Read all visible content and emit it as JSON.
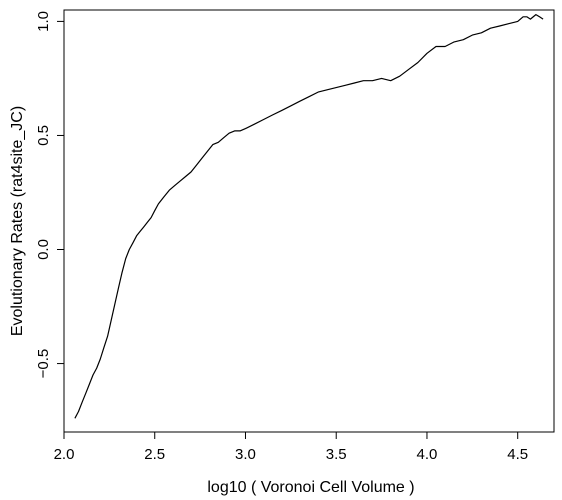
{
  "chart_data": {
    "type": "line",
    "title": "",
    "xlabel": "log10 ( Voronoi Cell Volume )",
    "ylabel": "Evolutionary Rates (rat4site_JC)",
    "xlim": [
      2.0,
      4.7
    ],
    "ylim": [
      -0.8,
      1.05
    ],
    "grid": false,
    "x_ticks": [
      {
        "value": 2.0,
        "label": "2.0"
      },
      {
        "value": 2.5,
        "label": "2.5"
      },
      {
        "value": 3.0,
        "label": "3.0"
      },
      {
        "value": 3.5,
        "label": "3.5"
      },
      {
        "value": 4.0,
        "label": "4.0"
      },
      {
        "value": 4.5,
        "label": "4.5"
      }
    ],
    "y_ticks": [
      {
        "value": -0.5,
        "label": "−0.5"
      },
      {
        "value": 0.0,
        "label": "0.0"
      },
      {
        "value": 0.5,
        "label": "0.5"
      },
      {
        "value": 1.0,
        "label": "1.0"
      }
    ],
    "series": [
      {
        "x": [
          2.06,
          2.08,
          2.1,
          2.12,
          2.14,
          2.16,
          2.18,
          2.2,
          2.22,
          2.24,
          2.26,
          2.28,
          2.3,
          2.32,
          2.34,
          2.36,
          2.38,
          2.4,
          2.42,
          2.44,
          2.46,
          2.48,
          2.5,
          2.52,
          2.55,
          2.58,
          2.61,
          2.64,
          2.67,
          2.7,
          2.73,
          2.76,
          2.79,
          2.82,
          2.85,
          2.88,
          2.91,
          2.94,
          2.97,
          3.0,
          3.05,
          3.1,
          3.15,
          3.2,
          3.25,
          3.3,
          3.35,
          3.4,
          3.45,
          3.5,
          3.55,
          3.6,
          3.65,
          3.7,
          3.75,
          3.8,
          3.85,
          3.9,
          3.95,
          4.0,
          4.05,
          4.1,
          4.15,
          4.2,
          4.25,
          4.3,
          4.35,
          4.4,
          4.45,
          4.5,
          4.53,
          4.55,
          4.57,
          4.6,
          4.62,
          4.64
        ],
        "y": [
          -0.74,
          -0.71,
          -0.67,
          -0.63,
          -0.59,
          -0.55,
          -0.52,
          -0.48,
          -0.43,
          -0.38,
          -0.31,
          -0.24,
          -0.17,
          -0.1,
          -0.04,
          0.0,
          0.03,
          0.06,
          0.08,
          0.1,
          0.12,
          0.14,
          0.17,
          0.2,
          0.23,
          0.26,
          0.28,
          0.3,
          0.32,
          0.34,
          0.37,
          0.4,
          0.43,
          0.46,
          0.47,
          0.49,
          0.51,
          0.52,
          0.52,
          0.53,
          0.55,
          0.57,
          0.59,
          0.61,
          0.63,
          0.65,
          0.67,
          0.69,
          0.7,
          0.71,
          0.72,
          0.73,
          0.74,
          0.74,
          0.75,
          0.74,
          0.76,
          0.79,
          0.82,
          0.86,
          0.89,
          0.89,
          0.91,
          0.92,
          0.94,
          0.95,
          0.97,
          0.98,
          0.99,
          1.0,
          1.02,
          1.02,
          1.01,
          1.03,
          1.02,
          1.01
        ]
      }
    ]
  }
}
